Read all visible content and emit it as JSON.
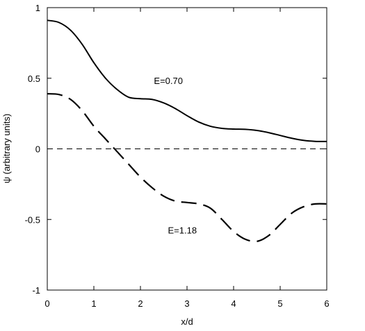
{
  "chart_data": {
    "type": "line",
    "title": "",
    "xlabel": "x/d",
    "ylabel": "ψ (arbitrary units)",
    "xlim": [
      0,
      6
    ],
    "ylim": [
      -1,
      1
    ],
    "grid": false,
    "x_ticks": [
      0,
      1,
      2,
      3,
      4,
      5,
      6
    ],
    "y_ticks": [
      -1,
      -0.5,
      0,
      0.5,
      1
    ],
    "x_tick_labels": [
      "0",
      "1",
      "2",
      "3",
      "4",
      "5",
      "6"
    ],
    "y_tick_labels": [
      "-1",
      "-0.5",
      "0",
      "0.5",
      "1"
    ],
    "series": [
      {
        "style": "solid",
        "color": "#000000",
        "x": [
          0,
          0.25,
          0.5,
          0.75,
          1,
          1.25,
          1.5,
          1.75,
          2,
          2.25,
          2.5,
          2.75,
          3,
          3.25,
          3.5,
          3.75,
          4,
          4.25,
          4.5,
          4.75,
          5,
          5.25,
          5.5,
          5.75,
          6
        ],
        "y": [
          0.91,
          0.895,
          0.84,
          0.74,
          0.61,
          0.5,
          0.42,
          0.365,
          0.355,
          0.35,
          0.325,
          0.285,
          0.235,
          0.19,
          0.16,
          0.145,
          0.14,
          0.138,
          0.13,
          0.115,
          0.095,
          0.075,
          0.06,
          0.053,
          0.052
        ]
      },
      {
        "style": "dashed",
        "color": "#000000",
        "x": [
          0,
          0.25,
          0.5,
          0.75,
          1,
          1.25,
          1.5,
          1.75,
          2,
          2.25,
          2.5,
          2.75,
          3,
          3.25,
          3.5,
          3.75,
          4,
          4.25,
          4.5,
          4.75,
          5,
          5.25,
          5.5,
          5.75,
          6
        ],
        "y": [
          0.39,
          0.385,
          0.35,
          0.27,
          0.16,
          0.07,
          -0.02,
          -0.11,
          -0.2,
          -0.275,
          -0.335,
          -0.37,
          -0.38,
          -0.39,
          -0.42,
          -0.5,
          -0.585,
          -0.64,
          -0.655,
          -0.615,
          -0.535,
          -0.455,
          -0.41,
          -0.39,
          -0.39
        ]
      }
    ],
    "reference_lines": [
      {
        "y": 0,
        "style": "dashed",
        "color": "#000000"
      }
    ],
    "annotations": [
      {
        "text": "E=0.70",
        "x": 2.6,
        "y": 0.46
      },
      {
        "text": "E=1.18",
        "x": 2.9,
        "y": -0.6
      }
    ]
  }
}
